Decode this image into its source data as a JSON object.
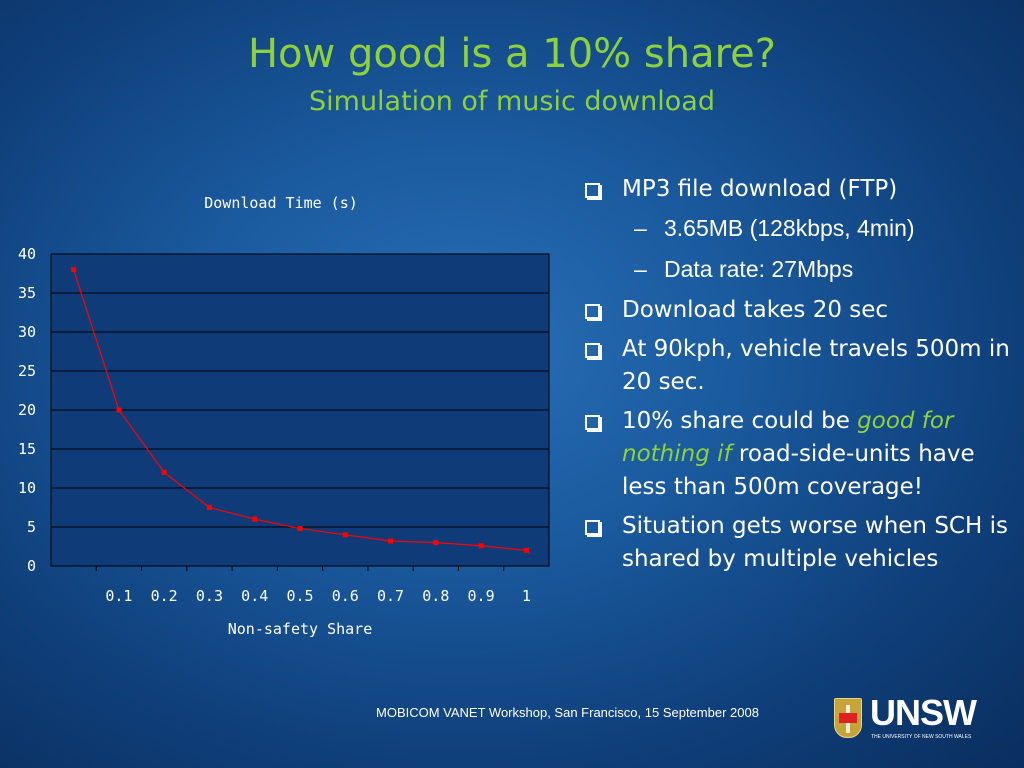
{
  "slide": {
    "title": "How good is a 10% share?",
    "subtitle": "Simulation of music download",
    "footer": "MOBICOM VANET Workshop, San Francisco, 15 September 2008",
    "logo_text": "UNSW",
    "logo_tagline": "THE UNIVERSITY OF NEW SOUTH WALES",
    "colors": {
      "title": "#8fd13a",
      "emphasis": "#8fd13a",
      "line": "#ff0000",
      "plot_bg": "#0f3c78"
    }
  },
  "bullets": {
    "b1": "MP3 file download (FTP)",
    "b1_sub1": "3.65MB (128kbps, 4min)",
    "b1_sub2": "Data rate: 27Mbps",
    "b2": "Download takes 20 sec",
    "b3": "At 90kph, vehicle travels 500m in 20 sec.",
    "b4_pre": "10% share could be",
    "b4_em": "good for nothing if",
    "b4_post": "road-side-units have less than 500m coverage!",
    "b5": "Situation gets worse when SCH is shared by multiple vehicles",
    "dash": "–",
    "bullet_icon": "checkbox-bullet-icon"
  },
  "chart_data": {
    "type": "line",
    "title": "Download Time (s)",
    "xlabel": "Non-safety Share",
    "ylabel": "",
    "categories": [
      "",
      "0.1",
      "0.2",
      "0.3",
      "0.4",
      "0.5",
      "0.6",
      "0.7",
      "0.8",
      "0.9",
      "1"
    ],
    "series": [
      {
        "values": [
          38,
          20,
          12,
          7.5,
          6,
          4.8,
          4,
          3.2,
          3,
          2.6,
          2
        ]
      }
    ],
    "ylim": [
      0,
      40
    ],
    "yticks": [
      0,
      5,
      10,
      15,
      20,
      25,
      30,
      35,
      40
    ],
    "grid": true,
    "legend": "none"
  }
}
